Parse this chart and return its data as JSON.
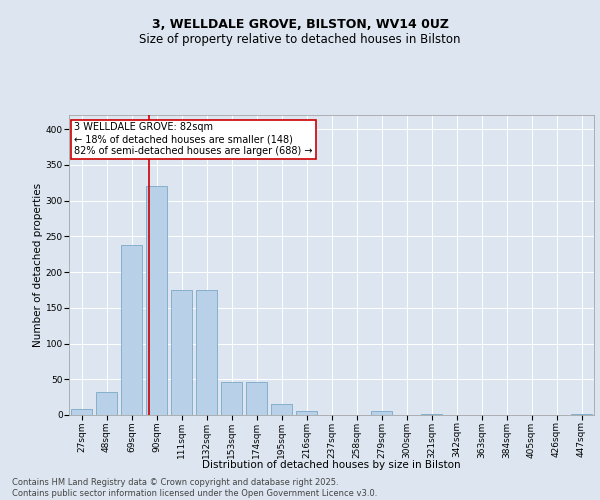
{
  "title_line1": "3, WELLDALE GROVE, BILSTON, WV14 0UZ",
  "title_line2": "Size of property relative to detached houses in Bilston",
  "xlabel": "Distribution of detached houses by size in Bilston",
  "ylabel": "Number of detached properties",
  "categories": [
    "27sqm",
    "48sqm",
    "69sqm",
    "90sqm",
    "111sqm",
    "132sqm",
    "153sqm",
    "174sqm",
    "195sqm",
    "216sqm",
    "237sqm",
    "258sqm",
    "279sqm",
    "300sqm",
    "321sqm",
    "342sqm",
    "363sqm",
    "384sqm",
    "405sqm",
    "426sqm",
    "447sqm"
  ],
  "values": [
    8,
    32,
    238,
    320,
    175,
    175,
    46,
    46,
    15,
    6,
    0,
    0,
    5,
    0,
    2,
    0,
    0,
    0,
    0,
    0,
    2
  ],
  "bar_color": "#b8d0e8",
  "bar_edge_color": "#6a9fc0",
  "vline_color": "#cc0000",
  "annotation_text": "3 WELLDALE GROVE: 82sqm\n← 18% of detached houses are smaller (148)\n82% of semi-detached houses are larger (688) →",
  "annotation_box_color": "#ffffff",
  "annotation_box_edge_color": "#cc0000",
  "ylim": [
    0,
    420
  ],
  "yticks": [
    0,
    50,
    100,
    150,
    200,
    250,
    300,
    350,
    400
  ],
  "bg_color": "#dde6f0",
  "plot_bg_color": "#dde6f0",
  "footer_text": "Contains HM Land Registry data © Crown copyright and database right 2025.\nContains public sector information licensed under the Open Government Licence v3.0.",
  "title_fontsize": 9,
  "subtitle_fontsize": 8.5,
  "axis_label_fontsize": 7.5,
  "tick_fontsize": 6.5,
  "annotation_fontsize": 7,
  "footer_fontsize": 6,
  "ylabel_fontsize": 7.5
}
